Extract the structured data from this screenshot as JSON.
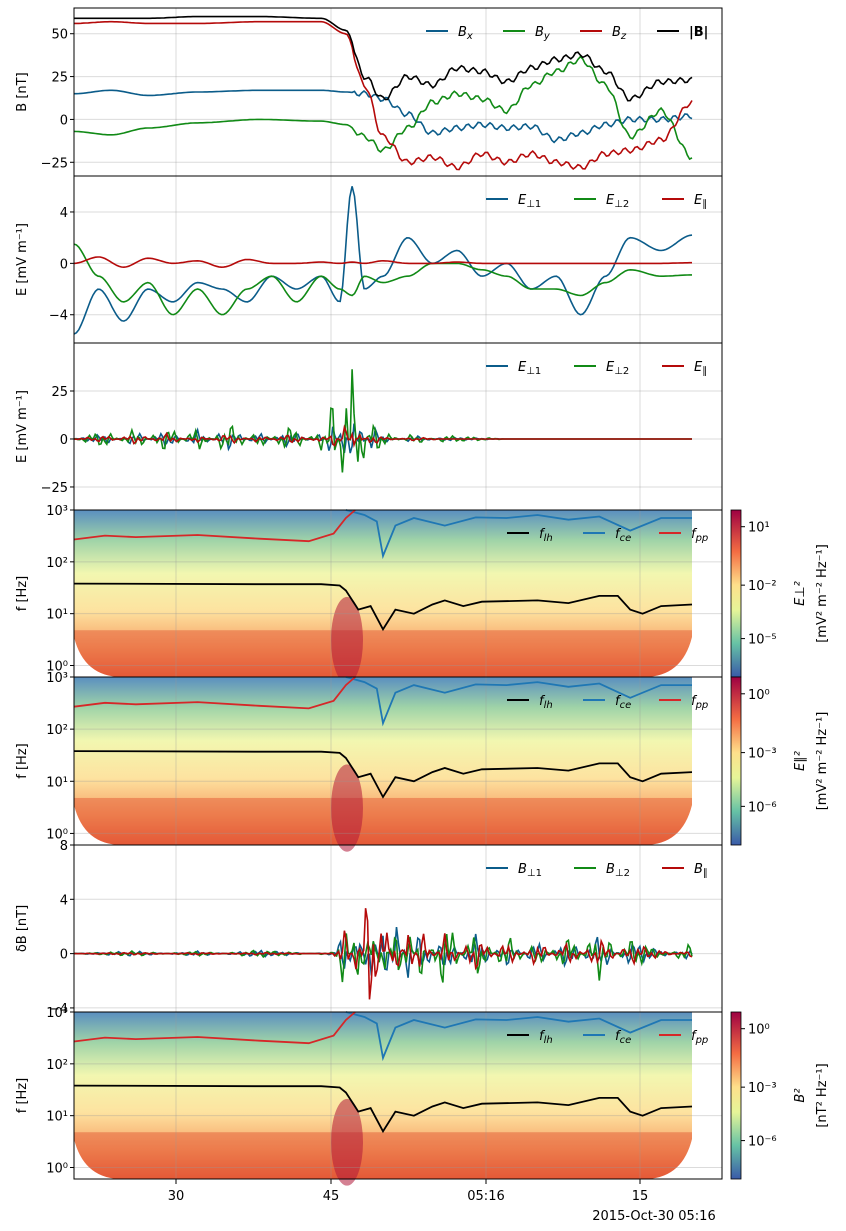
{
  "figure": {
    "x_ticks": [
      "30",
      "45",
      "05:16",
      "15"
    ],
    "x_date_label": "2015-Oct-30 05:16",
    "colors": {
      "blue": "#0b5c8a",
      "green": "#118a16",
      "red": "#b50a0a",
      "black": "#000000",
      "lh": "#000000",
      "ce": "#1f77b4",
      "pp": "#d62728"
    }
  },
  "chart_data": [
    {
      "type": "line",
      "ylabel": "B [nT]",
      "ylim": [
        -33,
        65
      ],
      "yticks": [
        "50",
        "25",
        "0",
        "−25"
      ],
      "ytick_values": [
        50,
        25,
        0,
        -25
      ],
      "legend": [
        "Bx",
        "By",
        "Bz",
        "|B|"
      ],
      "series": [
        {
          "name": "Bx",
          "color": "blue",
          "x": [
            0.0,
            0.06,
            0.12,
            0.2,
            0.3,
            0.4,
            0.44,
            0.47,
            0.5,
            0.54,
            0.58,
            0.62,
            0.66,
            0.7,
            0.74,
            0.78,
            0.82,
            0.86,
            0.9,
            0.95,
            1.0
          ],
          "y": [
            15,
            17,
            14,
            16,
            17,
            17,
            16,
            15,
            12,
            3,
            -8,
            -5,
            -3,
            -5,
            -4,
            -12,
            -8,
            -3,
            0,
            0,
            2
          ]
        },
        {
          "name": "By",
          "color": "green",
          "x": [
            0.0,
            0.06,
            0.12,
            0.2,
            0.3,
            0.4,
            0.44,
            0.47,
            0.5,
            0.54,
            0.58,
            0.62,
            0.66,
            0.7,
            0.74,
            0.78,
            0.82,
            0.86,
            0.9,
            0.95,
            1.0
          ],
          "y": [
            -7,
            -9,
            -5,
            -2,
            0,
            -1,
            -3,
            -10,
            -18,
            -5,
            10,
            15,
            12,
            5,
            20,
            28,
            35,
            20,
            -10,
            5,
            -22
          ]
        },
        {
          "name": "Bz",
          "color": "red",
          "x": [
            0.0,
            0.06,
            0.12,
            0.2,
            0.3,
            0.4,
            0.44,
            0.47,
            0.5,
            0.54,
            0.58,
            0.62,
            0.66,
            0.7,
            0.74,
            0.78,
            0.82,
            0.86,
            0.9,
            0.95,
            1.0
          ],
          "y": [
            56,
            57,
            56,
            56,
            57,
            57,
            50,
            20,
            -10,
            -25,
            -22,
            -28,
            -20,
            -25,
            -20,
            -25,
            -28,
            -20,
            -18,
            -12,
            10
          ]
        },
        {
          "name": "|B|",
          "color": "black",
          "x": [
            0.0,
            0.06,
            0.12,
            0.2,
            0.3,
            0.4,
            0.44,
            0.47,
            0.5,
            0.54,
            0.58,
            0.62,
            0.66,
            0.7,
            0.74,
            0.78,
            0.82,
            0.86,
            0.9,
            0.95,
            1.0
          ],
          "y": [
            59,
            59,
            59,
            60,
            60,
            59,
            52,
            25,
            12,
            25,
            20,
            30,
            28,
            22,
            30,
            35,
            38,
            28,
            12,
            22,
            23
          ]
        }
      ]
    },
    {
      "type": "line",
      "ylabel": "E [mV m⁻¹]",
      "ylim": [
        -6.2,
        6.8
      ],
      "yticks": [
        "4",
        "0",
        "−4"
      ],
      "ytick_values": [
        4,
        0,
        -4
      ],
      "legend": [
        "E⊥1",
        "E⊥2",
        "E∥"
      ],
      "series": [
        {
          "name": "E⊥1",
          "color": "blue",
          "x": [
            0.0,
            0.04,
            0.08,
            0.12,
            0.16,
            0.2,
            0.24,
            0.28,
            0.32,
            0.36,
            0.4,
            0.43,
            0.45,
            0.47,
            0.5,
            0.54,
            0.58,
            0.62,
            0.66,
            0.7,
            0.74,
            0.78,
            0.82,
            0.86,
            0.9,
            0.95,
            1.0
          ],
          "y": [
            -5.5,
            -2,
            -4.5,
            -2,
            -3,
            -1.5,
            -2,
            -3,
            -1,
            -2,
            -1,
            -3,
            6,
            -2,
            -1,
            2,
            0,
            1,
            -1,
            0,
            -2,
            -1,
            -4,
            -1,
            2,
            1,
            2.2
          ]
        },
        {
          "name": "E⊥2",
          "color": "green",
          "x": [
            0.0,
            0.04,
            0.08,
            0.12,
            0.16,
            0.2,
            0.24,
            0.28,
            0.32,
            0.36,
            0.4,
            0.43,
            0.45,
            0.47,
            0.5,
            0.54,
            0.58,
            0.62,
            0.66,
            0.7,
            0.74,
            0.78,
            0.82,
            0.86,
            0.9,
            0.95,
            1.0
          ],
          "y": [
            1.5,
            -1,
            -3,
            -1.5,
            -4,
            -2,
            -4,
            -2,
            -1,
            -3,
            -1,
            -2,
            -2.5,
            -1,
            -1.5,
            -1,
            0,
            0,
            -0.5,
            -1,
            -2,
            -2,
            -2.5,
            -1.5,
            -0.5,
            -1,
            -0.9
          ]
        },
        {
          "name": "E∥",
          "color": "red",
          "x": [
            0.0,
            0.04,
            0.08,
            0.12,
            0.16,
            0.2,
            0.24,
            0.28,
            0.32,
            0.36,
            0.4,
            0.43,
            0.45,
            0.47,
            0.5,
            0.54,
            0.58,
            0.62,
            0.66,
            0.7,
            0.74,
            0.78,
            0.82,
            0.86,
            0.9,
            0.95,
            1.0
          ],
          "y": [
            0,
            0.5,
            -0.3,
            0.4,
            0,
            0.2,
            -0.3,
            0.3,
            0,
            0,
            0.1,
            0,
            0.1,
            0,
            0.2,
            0,
            0,
            0.1,
            0,
            0,
            0,
            0,
            0,
            0,
            0,
            0,
            0.05
          ]
        }
      ]
    },
    {
      "type": "line",
      "ylabel": "E [mV m⁻¹]",
      "ylim": [
        -37,
        50
      ],
      "yticks": [
        "25",
        "0",
        "−25"
      ],
      "ytick_values": [
        25,
        0,
        -25
      ],
      "legend": [
        "E⊥1",
        "E⊥2",
        "E∥"
      ],
      "series": [
        {
          "name": "E⊥1",
          "color": "blue",
          "x": [
            0.0,
            0.05,
            0.1,
            0.15,
            0.2,
            0.25,
            0.3,
            0.35,
            0.4,
            0.42,
            0.44,
            0.45,
            0.46,
            0.48,
            0.5,
            0.55,
            0.6,
            0.7,
            0.8,
            0.9,
            1.0
          ],
          "y": [
            0,
            3,
            -4,
            5,
            -5,
            6,
            -4,
            5,
            -3,
            12,
            -15,
            20,
            -10,
            8,
            2,
            -2,
            1,
            0,
            0,
            0,
            0
          ]
        },
        {
          "name": "E⊥2",
          "color": "green",
          "x": [
            0.0,
            0.05,
            0.1,
            0.15,
            0.2,
            0.25,
            0.3,
            0.35,
            0.4,
            0.42,
            0.44,
            0.45,
            0.46,
            0.48,
            0.5,
            0.55,
            0.6,
            0.7,
            0.8,
            0.9,
            1.0
          ],
          "y": [
            0,
            5,
            -6,
            8,
            -7,
            9,
            -5,
            8,
            -6,
            25,
            -35,
            45,
            -30,
            12,
            4,
            -3,
            2,
            0,
            0,
            0,
            0
          ]
        },
        {
          "name": "E∥",
          "color": "red",
          "x": [
            0.0,
            0.05,
            0.1,
            0.15,
            0.2,
            0.25,
            0.3,
            0.35,
            0.4,
            0.42,
            0.44,
            0.45,
            0.46,
            0.48,
            0.5,
            0.55,
            0.6,
            0.7,
            0.8,
            0.9,
            1.0
          ],
          "y": [
            0,
            2,
            -3,
            3,
            -2,
            3,
            -2,
            3,
            -2,
            5,
            -8,
            10,
            -6,
            4,
            1,
            -1,
            0,
            0,
            0,
            0,
            0
          ]
        }
      ]
    },
    {
      "type": "heatmap",
      "ylabel": "f [Hz]",
      "yscale": "log",
      "ylim": [
        0.6,
        1000
      ],
      "yticks": [
        "10³",
        "10²",
        "10¹",
        "10⁰"
      ],
      "colorbar_label": "E⊥²",
      "colorbar_units": "[mV² m⁻² Hz⁻¹]",
      "colorbar_ticks": [
        "10¹",
        "10⁻²",
        "10⁻⁵"
      ],
      "legend": [
        "f_lh",
        "f_ce",
        "f_pp"
      ]
    },
    {
      "type": "heatmap",
      "ylabel": "f [Hz]",
      "yscale": "log",
      "ylim": [
        0.6,
        1000
      ],
      "yticks": [
        "10³",
        "10²",
        "10¹",
        "10⁰"
      ],
      "colorbar_label": "E∥²",
      "colorbar_units": "[mV² m⁻² Hz⁻¹]",
      "colorbar_ticks": [
        "10⁰",
        "10⁻³",
        "10⁻⁶"
      ],
      "legend": [
        "f_lh",
        "f_ce",
        "f_pp"
      ]
    },
    {
      "type": "line",
      "ylabel": "δB [nT]",
      "ylim": [
        -4.3,
        8
      ],
      "yticks": [
        "8",
        "4",
        "0",
        "−4"
      ],
      "ytick_values": [
        8,
        4,
        0,
        -4
      ],
      "legend": [
        "B⊥1",
        "B⊥2",
        "B∥"
      ],
      "series": [
        {
          "name": "B⊥1",
          "color": "blue",
          "x": [
            0.0,
            0.1,
            0.2,
            0.3,
            0.38,
            0.42,
            0.44,
            0.46,
            0.48,
            0.5,
            0.52,
            0.54,
            0.56,
            0.6,
            0.65,
            0.7,
            0.75,
            0.8,
            0.85,
            0.9,
            1.0
          ],
          "y": [
            0,
            0.2,
            -0.2,
            0.3,
            0,
            0.1,
            2,
            -2,
            3,
            -3,
            2.5,
            -2,
            2,
            -1.5,
            1.5,
            -1,
            1,
            -1.2,
            1.5,
            -1,
            0.5
          ]
        },
        {
          "name": "B⊥2",
          "color": "green",
          "x": [
            0.0,
            0.1,
            0.2,
            0.3,
            0.38,
            0.42,
            0.44,
            0.46,
            0.48,
            0.5,
            0.52,
            0.54,
            0.56,
            0.6,
            0.65,
            0.7,
            0.75,
            0.8,
            0.85,
            0.9,
            1.0
          ],
          "y": [
            0,
            0.2,
            -0.2,
            0.3,
            0,
            0.1,
            3,
            -3.5,
            2.5,
            -2.5,
            3,
            -2,
            2,
            -3,
            2,
            -1.5,
            1,
            -1.5,
            2,
            -1.2,
            0.8
          ]
        },
        {
          "name": "B∥",
          "color": "red",
          "x": [
            0.0,
            0.1,
            0.2,
            0.3,
            0.38,
            0.42,
            0.44,
            0.46,
            0.48,
            0.5,
            0.52,
            0.54,
            0.56,
            0.6,
            0.65,
            0.7,
            0.75,
            0.8,
            0.85,
            0.9,
            1.0
          ],
          "y": [
            0,
            0.1,
            -0.1,
            0.1,
            0,
            0,
            2,
            -2,
            7.5,
            -4,
            2.5,
            -2.5,
            2,
            -1.5,
            1.5,
            -1,
            1,
            -1,
            1.2,
            -0.8,
            0.3
          ]
        }
      ]
    },
    {
      "type": "heatmap",
      "ylabel": "f [Hz]",
      "yscale": "log",
      "ylim": [
        0.6,
        1000
      ],
      "yticks": [
        "10³",
        "10²",
        "10¹",
        "10⁰"
      ],
      "colorbar_label": "B²",
      "colorbar_units": "[nT² Hz⁻¹]",
      "colorbar_ticks": [
        "10⁰",
        "10⁻³",
        "10⁻⁶"
      ],
      "legend": [
        "f_lh",
        "f_ce",
        "f_pp"
      ]
    }
  ]
}
